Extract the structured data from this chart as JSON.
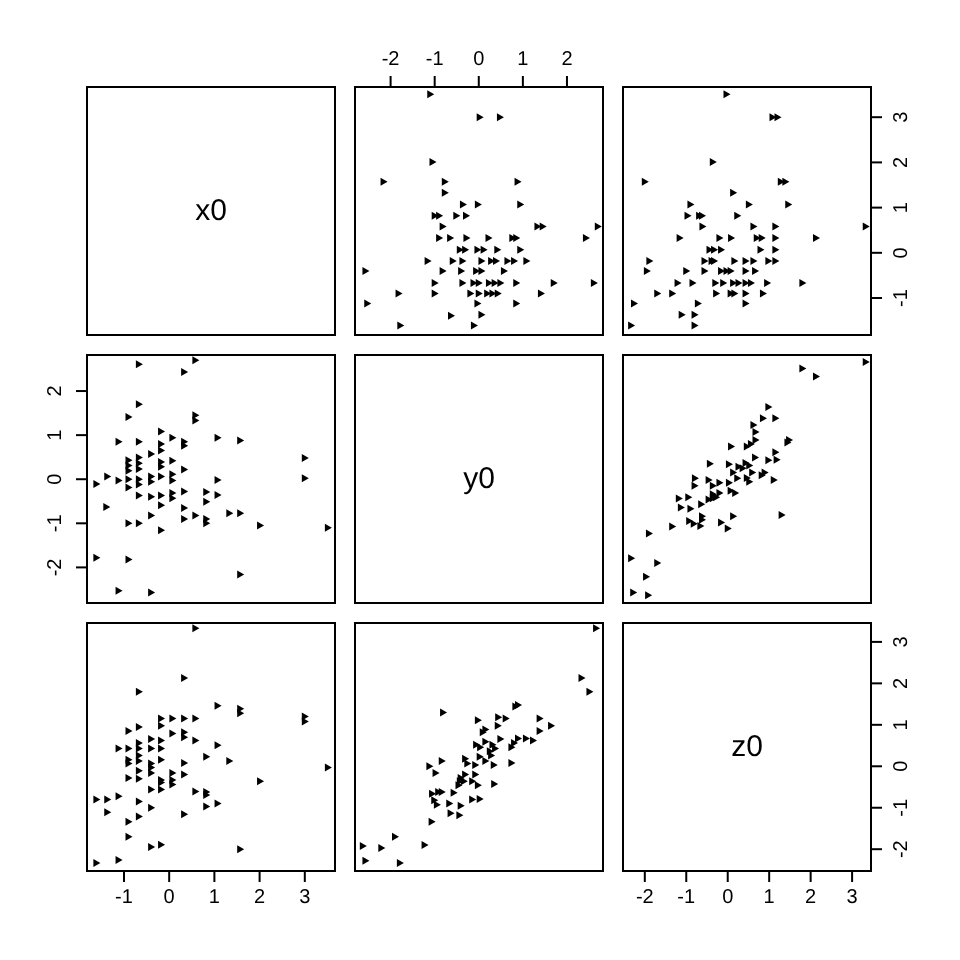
{
  "chart_data": [
    {
      "type": "other",
      "title": "x0"
    },
    {
      "type": "scatter",
      "marker": "triangle",
      "tick_labels": "x",
      "xlim": [
        -2.83,
        2.84
      ],
      "xticks": [
        -2,
        -1,
        0,
        1,
        2
      ],
      "ylim": [
        -1.84,
        3.69
      ],
      "series": [
        {
          "color": "#000000",
          "x": [
            2.61,
            2.7,
            2.43,
            1.7,
            1.41,
            1.45,
            1.33,
            1.08,
            0.85,
            0.85,
            0.94,
            0.85,
            0.76,
            0.94,
            0.88,
            0.57,
            0.8,
            0.65,
            0.43,
            0.49,
            0.31,
            0.36,
            0.39,
            0.28,
            0.42,
            0.22,
            0.19,
            0.23,
            0.06,
            0.0,
            0.0,
            -0.06,
            0.06,
            0.11,
            -0.03,
            -0.02,
            0.48,
            0.02,
            -0.11,
            0.06,
            -0.03,
            -0.19,
            -0.12,
            -0.37,
            -0.4,
            -0.37,
            -0.31,
            -0.28,
            -0.43,
            -0.29,
            -0.51,
            -0.36,
            -0.59,
            -0.65,
            -0.63,
            -1.0,
            -1.0,
            -0.82,
            -1.16,
            -0.9,
            -0.82,
            -0.9,
            -1.0,
            -0.77,
            -0.77,
            -1.05,
            -1.1,
            -1.78,
            -1.82,
            -2.16,
            -2.53,
            -2.57
          ],
          "values": [
            -0.67,
            0.58,
            0.33,
            -0.67,
            -0.9,
            0.58,
            0.58,
            -0.18,
            -1.12,
            -0.67,
            0.07,
            0.33,
            0.33,
            1.07,
            1.57,
            -0.4,
            -0.18,
            -0.18,
            -0.9,
            -0.67,
            -0.9,
            -0.67,
            -0.18,
            -0.18,
            0.07,
            0.33,
            -0.9,
            -0.67,
            -0.4,
            -0.9,
            -0.67,
            -0.4,
            -0.18,
            0.07,
            0.07,
            1.07,
            3.0,
            3.0,
            -1.61,
            -1.37,
            -1.12,
            -0.9,
            -0.67,
            -0.67,
            -0.4,
            -0.18,
            0.07,
            0.33,
            0.07,
            0.82,
            0.82,
            1.07,
            -0.18,
            0.33,
            -1.39,
            -0.9,
            -0.67,
            -0.4,
            -0.18,
            0.33,
            0.58,
            0.82,
            0.82,
            1.33,
            1.57,
            2.01,
            3.51,
            -1.61,
            -0.9,
            1.57,
            -1.12,
            -0.4
          ]
        }
      ]
    },
    {
      "type": "scatter",
      "marker": "triangle",
      "tick_labels": "y",
      "xlim": [
        -2.55,
        3.48
      ],
      "ylim": [
        -1.84,
        3.69
      ],
      "yticks": [
        -1,
        0,
        1,
        2,
        3
      ],
      "series": [
        {
          "color": "#000000",
          "x": [
            3.33,
            2.13,
            1.8,
            1.46,
            1.39,
            1.28,
            1.2,
            1.08,
            1.15,
            1.15,
            1.15,
            1.15,
            0.98,
            0.79,
            0.82,
            0.7,
            0.62,
            0.85,
            0.95,
            0.66,
            0.62,
            0.43,
            0.43,
            0.56,
            0.43,
            0.43,
            0.43,
            0.51,
            0.16,
            0.07,
            0.26,
            0.13,
            0.07,
            0.16,
            0.08,
            0.23,
            0.13,
            -0.28,
            -0.11,
            -0.3,
            -0.03,
            -0.16,
            -0.33,
            -0.39,
            -0.16,
            -0.33,
            -0.2,
            -0.44,
            -0.56,
            -0.56,
            -0.03,
            -0.36,
            -0.8,
            -0.8,
            -0.72,
            -1.11,
            -0.85,
            -1.0,
            -1.34,
            -1.21,
            -1.16,
            -0.61,
            -0.62,
            -0.69,
            -0.97,
            -0.9,
            -1.7,
            -1.95,
            -1.89,
            -2.0,
            -2.33,
            -2.26
          ],
          "values": [
            0.58,
            0.33,
            -0.67,
            1.07,
            1.57,
            1.57,
            3.0,
            3.0,
            -0.18,
            0.07,
            0.33,
            0.58,
            -0.18,
            0.07,
            0.33,
            0.33,
            0.58,
            -0.9,
            -0.67,
            -0.4,
            -0.18,
            -0.9,
            -1.12,
            -0.67,
            -0.67,
            -0.4,
            -0.18,
            1.07,
            -0.9,
            -0.9,
            -0.67,
            -0.67,
            -0.4,
            -0.18,
            0.33,
            0.82,
            1.33,
            -0.9,
            -0.67,
            -0.67,
            -0.4,
            -0.4,
            -0.18,
            -0.18,
            0.07,
            0.07,
            0.33,
            0.07,
            -0.4,
            -0.18,
            3.51,
            2.01,
            -1.61,
            -1.37,
            -1.12,
            -1.37,
            -0.67,
            -0.4,
            -0.9,
            -0.67,
            0.33,
            0.58,
            0.82,
            0.82,
            0.82,
            1.07,
            -0.9,
            -0.4,
            -0.18,
            1.57,
            -1.61,
            -1.12
          ]
        }
      ]
    },
    {
      "type": "scatter",
      "color": "#000000",
      "marker": "triangle",
      "tick_labels": "y",
      "xlim": [
        -1.84,
        3.69
      ],
      "ylim": [
        -2.83,
        2.84
      ],
      "yticks": [
        -2,
        -1,
        0,
        1,
        2
      ],
      "x": [
        -0.67,
        0.58,
        0.33,
        -0.67,
        -0.9,
        0.58,
        0.58,
        -0.18,
        -1.12,
        -0.67,
        0.07,
        0.33,
        0.33,
        1.07,
        1.57,
        -0.4,
        -0.18,
        -0.18,
        -0.9,
        -0.67,
        -0.9,
        -0.67,
        -0.18,
        -0.18,
        0.07,
        0.33,
        -0.9,
        -0.67,
        -0.4,
        -0.9,
        -0.67,
        -0.4,
        -0.18,
        0.07,
        0.07,
        1.07,
        3.0,
        3.0,
        -1.61,
        -1.37,
        -1.12,
        -0.9,
        -0.67,
        -0.67,
        -0.4,
        -0.18,
        0.07,
        0.33,
        0.07,
        0.82,
        0.82,
        1.07,
        -0.18,
        0.33,
        -1.39,
        -0.9,
        -0.67,
        -0.4,
        -0.18,
        0.33,
        0.58,
        0.82,
        0.82,
        1.33,
        1.57,
        2.01,
        3.51,
        -1.61,
        -0.9,
        1.57,
        -1.12,
        -0.4
      ],
      "values": [
        2.61,
        2.7,
        2.43,
        1.7,
        1.41,
        1.45,
        1.33,
        1.08,
        0.85,
        0.85,
        0.94,
        0.85,
        0.76,
        0.94,
        0.88,
        0.57,
        0.8,
        0.65,
        0.43,
        0.49,
        0.31,
        0.36,
        0.39,
        0.28,
        0.42,
        0.22,
        0.19,
        0.23,
        0.06,
        0.0,
        0.0,
        -0.06,
        0.06,
        0.11,
        -0.03,
        -0.02,
        0.48,
        0.02,
        -0.11,
        0.06,
        -0.03,
        -0.19,
        -0.12,
        -0.37,
        -0.4,
        -0.37,
        -0.31,
        -0.28,
        -0.43,
        -0.29,
        -0.51,
        -0.36,
        -0.59,
        -0.65,
        -0.63,
        -1.0,
        -1.0,
        -0.82,
        -1.16,
        -0.9,
        -0.82,
        -0.9,
        -1.0,
        -0.77,
        -0.77,
        -1.05,
        -1.1,
        -1.78,
        -1.82,
        -2.16,
        -2.53,
        -2.57
      ]
    },
    {
      "type": "other",
      "title": "y0"
    },
    {
      "type": "scatter",
      "color": "#000000",
      "marker": "triangle",
      "tick_labels": false,
      "xlim": [
        -2.55,
        3.48
      ],
      "ylim": [
        -2.83,
        2.84
      ],
      "x": [
        3.33,
        2.13,
        1.8,
        1.3,
        1.44,
        1.48,
        1.18,
        1.15,
        0.98,
        1.11,
        0.89,
        0.82,
        1.15,
        0.98,
        0.85,
        0.62,
        0.67,
        0.67,
        0.56,
        0.46,
        0.66,
        0.52,
        0.43,
        0.59,
        0.36,
        0.52,
        0.46,
        0.23,
        0.13,
        0.03,
        0.26,
        0.03,
        0.08,
        0.18,
        0.07,
        0.13,
        0.0,
        -0.16,
        -0.2,
        -0.28,
        -0.36,
        -0.46,
        -0.64,
        -0.62,
        -0.62,
        -0.66,
        -0.82,
        -0.93,
        -0.9,
        -0.95,
        -0.8,
        -0.79,
        -1.18,
        -1.13,
        -1.34,
        -1.9,
        -1.7,
        -1.97,
        -1.92,
        -2.28,
        -2.33,
        -0.36,
        -0.2,
        -0.36,
        -0.46,
        -0.43
      ],
      "values": [
        2.66,
        2.33,
        2.51,
        -0.81,
        0.83,
        0.89,
        0.44,
        0.61,
        0.43,
        -0.02,
        0.15,
        0.09,
        1.38,
        1.64,
        1.38,
        1.23,
        1.07,
        0.89,
        0.8,
        0.74,
        0.49,
        0.31,
        0.37,
        0.15,
        0.25,
        -0.06,
        0.03,
        0.02,
        0.15,
        -0.08,
        0.28,
        0.34,
        0.74,
        -0.31,
        -0.26,
        -0.84,
        -1.12,
        -0.98,
        -0.31,
        -0.41,
        -0.34,
        -0.46,
        -0.57,
        -0.84,
        -0.92,
        -1.06,
        -1.01,
        -0.95,
        -0.67,
        -0.41,
        -0.15,
        0.02,
        -0.44,
        -0.64,
        -1.07,
        -1.23,
        -1.9,
        -2.21,
        -2.63,
        -2.57,
        -1.79,
        -0.43,
        -0.08,
        -0.15,
        -0.02,
        0.35
      ]
    },
    {
      "type": "scatter",
      "color": "#000000",
      "marker": "triangle",
      "tick_labels": "x",
      "xlim": [
        -1.84,
        3.69
      ],
      "xticks": [
        -1,
        0,
        1,
        2,
        3
      ],
      "ylim": [
        -2.55,
        3.48
      ],
      "x": [
        0.58,
        0.33,
        -0.67,
        1.07,
        1.57,
        1.57,
        3.0,
        3.0,
        -0.18,
        0.07,
        0.33,
        0.58,
        -0.18,
        0.07,
        0.33,
        0.33,
        0.58,
        -0.9,
        -0.67,
        -0.4,
        -0.18,
        -0.9,
        -1.12,
        -0.67,
        -0.67,
        -0.4,
        -0.18,
        1.07,
        -0.9,
        -0.9,
        -0.67,
        -0.67,
        -0.4,
        -0.18,
        0.33,
        0.82,
        1.33,
        -0.9,
        -0.67,
        -0.67,
        -0.4,
        -0.4,
        -0.18,
        -0.18,
        0.07,
        0.07,
        0.33,
        0.07,
        -0.4,
        -0.18,
        3.51,
        2.01,
        -1.61,
        -1.37,
        -1.12,
        -1.37,
        -0.67,
        -0.4,
        -0.9,
        -0.67,
        0.33,
        0.58,
        0.82,
        0.82,
        0.82,
        1.07,
        -0.9,
        -0.4,
        -0.18,
        1.57,
        -1.61,
        -1.12
      ],
      "values": [
        3.33,
        2.13,
        1.8,
        1.46,
        1.39,
        1.28,
        1.2,
        1.08,
        1.15,
        1.15,
        1.15,
        1.15,
        0.98,
        0.79,
        0.82,
        0.7,
        0.62,
        0.85,
        0.95,
        0.66,
        0.62,
        0.43,
        0.43,
        0.56,
        0.43,
        0.43,
        0.43,
        0.51,
        0.16,
        0.07,
        0.26,
        0.13,
        0.07,
        0.16,
        0.08,
        0.23,
        0.13,
        -0.28,
        -0.11,
        -0.3,
        -0.03,
        -0.16,
        -0.33,
        -0.39,
        -0.16,
        -0.33,
        -0.2,
        -0.44,
        -0.56,
        -0.56,
        -0.03,
        -0.36,
        -0.8,
        -0.8,
        -0.72,
        -1.11,
        -0.85,
        -1.0,
        -1.34,
        -1.21,
        -1.16,
        -0.61,
        -0.62,
        -0.69,
        -0.97,
        -0.9,
        -1.7,
        -1.95,
        -1.89,
        -2.0,
        -2.33,
        -2.26
      ]
    },
    {
      "type": "scatter",
      "color": "#000000",
      "marker": "triangle",
      "tick_labels": false,
      "xlim": [
        -2.83,
        2.84
      ],
      "ylim": [
        -2.55,
        3.48
      ],
      "x": [
        2.66,
        2.33,
        2.51,
        -0.81,
        0.83,
        0.89,
        0.44,
        0.61,
        0.43,
        -0.02,
        0.15,
        0.09,
        1.38,
        1.64,
        1.38,
        1.23,
        1.07,
        0.89,
        0.8,
        0.74,
        0.49,
        0.31,
        0.37,
        0.15,
        0.25,
        -0.06,
        0.03,
        0.02,
        0.15,
        -0.08,
        0.28,
        0.34,
        0.74,
        -0.31,
        -0.26,
        -0.84,
        -1.12,
        -0.98,
        -0.31,
        -0.41,
        -0.34,
        -0.46,
        -0.57,
        -0.84,
        -0.92,
        -1.06,
        -1.01,
        -0.95,
        -0.67,
        -0.41,
        -0.15,
        0.02,
        -0.44,
        -0.64,
        -1.07,
        -1.23,
        -1.9,
        -2.21,
        -2.63,
        -2.57,
        -1.79,
        -0.43,
        -0.08,
        -0.15,
        -0.02,
        0.35
      ],
      "values": [
        3.33,
        2.13,
        1.8,
        1.3,
        1.44,
        1.48,
        1.18,
        1.15,
        0.98,
        1.11,
        0.89,
        0.82,
        1.15,
        0.98,
        0.85,
        0.62,
        0.67,
        0.67,
        0.56,
        0.46,
        0.66,
        0.52,
        0.43,
        0.59,
        0.36,
        0.52,
        0.46,
        0.23,
        0.13,
        0.03,
        0.26,
        0.03,
        0.08,
        0.18,
        0.07,
        0.13,
        0.0,
        -0.16,
        -0.2,
        -0.28,
        -0.36,
        -0.46,
        -0.64,
        -0.62,
        -0.62,
        -0.66,
        -0.82,
        -0.93,
        -0.9,
        -0.95,
        -0.8,
        -0.79,
        -1.18,
        -1.13,
        -1.34,
        -1.9,
        -1.7,
        -1.97,
        -1.92,
        -2.28,
        -2.33,
        -0.36,
        -0.2,
        -0.36,
        -0.46,
        -0.43
      ]
    },
    {
      "type": "scatter",
      "title": "z0",
      "xlim": [
        -2.55,
        3.48
      ],
      "xticks": [
        -2,
        -1,
        0,
        1,
        2,
        3
      ],
      "ylim": [
        -2.55,
        3.48
      ],
      "yticks": [
        -2,
        -1,
        0,
        1,
        2,
        3
      ]
    }
  ]
}
